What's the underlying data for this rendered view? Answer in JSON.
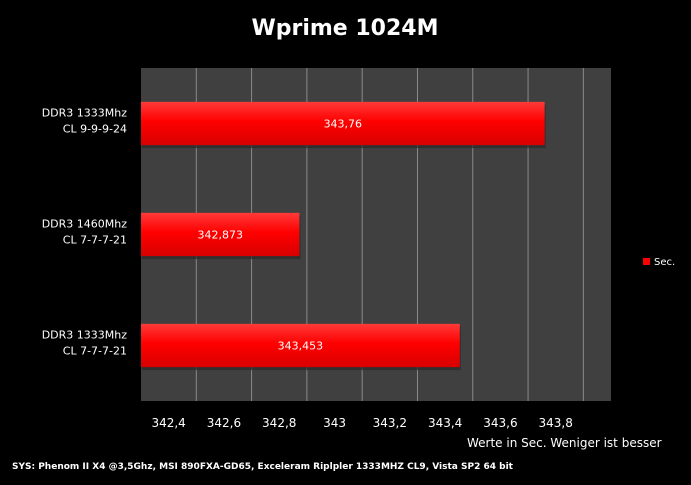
{
  "chart_data": {
    "type": "bar",
    "orientation": "horizontal",
    "title": "Wprime 1024M",
    "categories": [
      [
        "DDR3 1333Mhz",
        "CL 9-9-9-24"
      ],
      [
        "DDR3 1460Mhz",
        "CL 7-7-7-21"
      ],
      [
        "DDR3 1333Mhz",
        "CL 7-7-7-21"
      ]
    ],
    "series": [
      {
        "name": "Sec.",
        "values": [
          343.76,
          342.873,
          343.453
        ],
        "labels": [
          "343,76",
          "342,873",
          "343,453"
        ],
        "color": "#ff0000"
      }
    ],
    "xlim": [
      342.3,
      344.0
    ],
    "xticks": [
      342.4,
      342.6,
      342.8,
      343,
      343.2,
      343.4,
      343.6,
      343.8
    ],
    "xtick_labels": [
      "342,4",
      "342,6",
      "342,8",
      "343",
      "343,2",
      "343,4",
      "343,6",
      "343,8"
    ],
    "xlabel": "Werte in Sec. Weniger ist besser",
    "grid": true,
    "legend_position": "right",
    "footer": "SYS: Phenom II X4 @3,5Ghz, MSI 890FXA-GD65, Exceleram Riplpler 1333MHZ CL9, Vista SP2 64 bit",
    "colors": {
      "background": "#000000",
      "plot_area": "#404040",
      "gridline": "#8a8a8a",
      "bar": "#ff0000",
      "text": "#ffffff"
    }
  }
}
